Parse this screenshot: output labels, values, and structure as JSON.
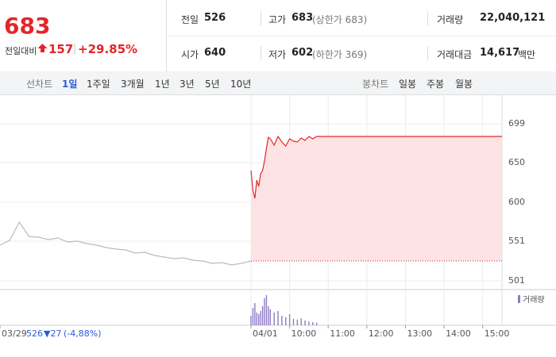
{
  "quote": {
    "price": "683",
    "change_label": "전일대비",
    "change": "157",
    "change_pct": "+29.85%"
  },
  "stats": [
    {
      "label": "전일",
      "value": "526"
    },
    {
      "label": "고가",
      "value": "683",
      "note": "(상한가 683)"
    },
    {
      "label": "거래량",
      "value": "22,040,121"
    },
    {
      "label": "시가",
      "value": "640"
    },
    {
      "label": "저가",
      "value": "602",
      "note": "(하한가 369)"
    },
    {
      "label": "거래대금",
      "value": "14,617",
      "unit": "백만"
    }
  ],
  "tabs": {
    "line_label": "선차트",
    "line": [
      "1일",
      "1주일",
      "3개월",
      "1년",
      "3년",
      "5년",
      "10년"
    ],
    "candle_label": "봉차트",
    "candle": [
      "일봉",
      "주봉",
      "월봉"
    ]
  },
  "prev_summary": {
    "close": "526",
    "change": "▼27",
    "pct": "(-4,88%)"
  },
  "chart_data": {
    "type": "line",
    "xlim": [
      0,
      13
    ],
    "xticks": [
      {
        "value": 0,
        "label": "03/29"
      },
      {
        "value": 6.5,
        "label": "04/01"
      },
      {
        "value": 7.5,
        "label": "10:00"
      },
      {
        "value": 8.5,
        "label": "11:00"
      },
      {
        "value": 9.5,
        "label": "12:00"
      },
      {
        "value": 10.5,
        "label": "13:00"
      },
      {
        "value": 11.5,
        "label": "14:00"
      },
      {
        "value": 12.5,
        "label": "15:00"
      }
    ],
    "ylim": [
      490,
      716
    ],
    "yticks": [
      699,
      650,
      600,
      551,
      501
    ],
    "grid": true,
    "base_value": 526,
    "prev_day": {
      "color": "#bbbbbb",
      "x": [
        0,
        0.25,
        0.5,
        0.75,
        1,
        1.25,
        1.5,
        1.75,
        2,
        2.25,
        2.5,
        2.75,
        3,
        3.25,
        3.5,
        3.75,
        4,
        4.25,
        4.5,
        4.75,
        5,
        5.25,
        5.5,
        5.75,
        6,
        6.25,
        6.5
      ],
      "values": [
        546,
        552,
        575,
        557,
        556,
        553,
        555,
        550,
        551,
        548,
        546,
        543,
        541,
        540,
        536,
        537,
        533,
        531,
        529,
        530,
        527,
        526,
        523,
        524,
        521,
        523,
        526
      ]
    },
    "today": {
      "color": "#e4252a",
      "fill": "#fde3e3",
      "x": [
        6.5,
        6.55,
        6.6,
        6.65,
        6.7,
        6.75,
        6.8,
        6.85,
        6.9,
        6.95,
        7.0,
        7.1,
        7.2,
        7.3,
        7.4,
        7.5,
        7.6,
        7.7,
        7.8,
        7.9,
        8.0,
        8.1,
        8.2,
        13.0
      ],
      "values": [
        640,
        615,
        605,
        628,
        620,
        636,
        640,
        652,
        668,
        682,
        680,
        672,
        683,
        676,
        671,
        680,
        677,
        676,
        681,
        678,
        683,
        680,
        683,
        683
      ]
    },
    "volume": {
      "name": "거래량",
      "color": "#8e7cc3",
      "vlim": [
        0,
        100
      ],
      "x": [
        6.5,
        6.55,
        6.6,
        6.65,
        6.7,
        6.75,
        6.8,
        6.85,
        6.9,
        6.95,
        7.0,
        7.1,
        7.2,
        7.3,
        7.4,
        7.5,
        7.6,
        7.7,
        7.8,
        7.9,
        8.0,
        8.1,
        8.2
      ],
      "values": [
        30,
        55,
        70,
        40,
        35,
        45,
        60,
        85,
        95,
        60,
        50,
        40,
        45,
        30,
        25,
        35,
        20,
        18,
        22,
        15,
        12,
        10,
        8
      ]
    }
  }
}
